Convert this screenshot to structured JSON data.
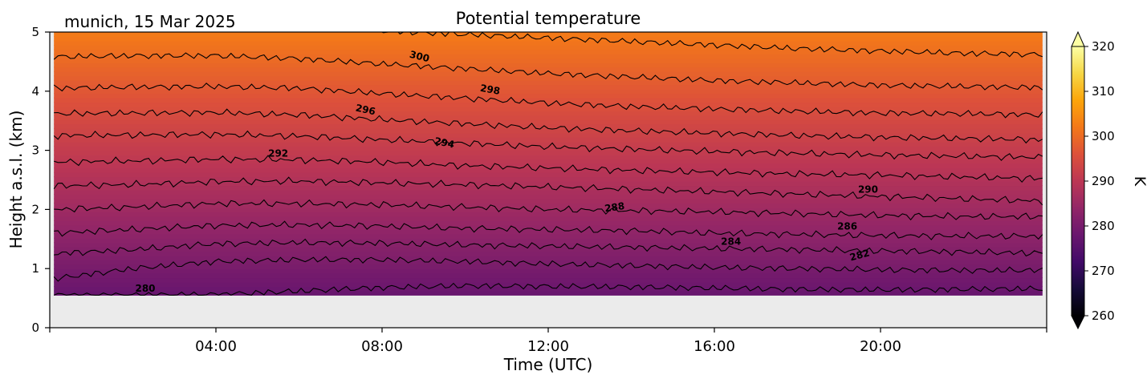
{
  "header": {
    "location_date": "munich, 15 Mar 2025",
    "title": "Potential temperature"
  },
  "chart_data": {
    "type": "heatmap",
    "title": "Potential temperature",
    "xlabel": "Time (UTC)",
    "ylabel": "Height a.s.l. (km)",
    "colorbar_label": "K",
    "x_range_hours": [
      0,
      24
    ],
    "x_ticks": [
      {
        "hour": 4,
        "label": "04:00"
      },
      {
        "hour": 8,
        "label": "08:00"
      },
      {
        "hour": 12,
        "label": "12:00"
      },
      {
        "hour": 16,
        "label": "16:00"
      },
      {
        "hour": 20,
        "label": "20:00"
      }
    ],
    "y_range_km": [
      0,
      5
    ],
    "y_ticks": [
      0,
      1,
      2,
      3,
      4,
      5
    ],
    "data_bottom_km": 0.55,
    "no_data_color": "#ebebeb",
    "colormap": "inferno",
    "color_range_K": [
      260,
      320
    ],
    "colorbar_ticks": [
      260,
      270,
      280,
      290,
      300,
      310,
      320
    ],
    "colorbar_extend": "both",
    "theta_surface_K": 277.5,
    "theta_top_K": 302.5,
    "contour_interval_K": 2,
    "contours": [
      {
        "level": 280,
        "z_km": [
          0.55,
          0.55,
          0.56,
          0.62,
          0.68,
          0.71,
          0.7,
          0.69,
          0.67,
          0.65,
          0.64,
          0.65,
          0.66
        ]
      },
      {
        "level": 282,
        "z_km": [
          0.82,
          1.0,
          1.12,
          1.15,
          1.15,
          1.12,
          1.08,
          1.05,
          1.02,
          1.0,
          0.98,
          0.97,
          0.97
        ]
      },
      {
        "level": 284,
        "z_km": [
          1.25,
          1.32,
          1.42,
          1.44,
          1.43,
          1.4,
          1.38,
          1.36,
          1.34,
          1.32,
          1.3,
          1.28,
          1.26
        ]
      },
      {
        "level": 286,
        "z_km": [
          1.6,
          1.66,
          1.73,
          1.74,
          1.72,
          1.68,
          1.66,
          1.64,
          1.6,
          1.58,
          1.56,
          1.55,
          1.55
        ]
      },
      {
        "level": 288,
        "z_km": [
          2.0,
          2.04,
          2.1,
          2.1,
          2.08,
          2.04,
          2.0,
          1.98,
          1.96,
          1.93,
          1.9,
          1.88,
          1.88
        ]
      },
      {
        "level": 290,
        "z_km": [
          2.4,
          2.42,
          2.47,
          2.48,
          2.45,
          2.42,
          2.38,
          2.34,
          2.3,
          2.26,
          2.22,
          2.18,
          2.14
        ]
      },
      {
        "level": 292,
        "z_km": [
          2.8,
          2.82,
          2.85,
          2.84,
          2.8,
          2.74,
          2.7,
          2.66,
          2.63,
          2.6,
          2.58,
          2.55,
          2.52
        ]
      },
      {
        "level": 294,
        "z_km": [
          3.25,
          3.26,
          3.27,
          3.24,
          3.18,
          3.12,
          3.06,
          3.02,
          2.98,
          2.95,
          2.92,
          2.9,
          2.88
        ]
      },
      {
        "level": 296,
        "z_km": [
          3.62,
          3.63,
          3.64,
          3.6,
          3.52,
          3.45,
          3.38,
          3.33,
          3.29,
          3.25,
          3.22,
          3.2,
          3.18
        ]
      },
      {
        "level": 298,
        "z_km": [
          4.05,
          4.07,
          4.08,
          4.05,
          3.96,
          3.88,
          3.8,
          3.74,
          3.7,
          3.66,
          3.63,
          3.62,
          3.6
        ]
      },
      {
        "level": 300,
        "z_km": [
          4.58,
          4.6,
          4.6,
          4.55,
          4.46,
          4.38,
          4.3,
          4.24,
          4.18,
          4.14,
          4.1,
          4.08,
          4.06
        ]
      },
      {
        "level": 302,
        "z_km": [
          5.1,
          5.1,
          5.1,
          5.08,
          5.02,
          4.96,
          4.9,
          4.84,
          4.78,
          4.72,
          4.68,
          4.64,
          4.62
        ]
      }
    ],
    "contour_labels": [
      {
        "text": "280",
        "hour": 2.3,
        "z_km": 0.66,
        "angle": 0
      },
      {
        "text": "282",
        "hour": 19.5,
        "z_km": 1.22,
        "angle": -15
      },
      {
        "text": "284",
        "hour": 16.4,
        "z_km": 1.45,
        "angle": 0
      },
      {
        "text": "286",
        "hour": 19.2,
        "z_km": 1.71,
        "angle": 0
      },
      {
        "text": "288",
        "hour": 13.6,
        "z_km": 2.03,
        "angle": -8
      },
      {
        "text": "290",
        "hour": 19.7,
        "z_km": 2.33,
        "angle": 0
      },
      {
        "text": "292",
        "hour": 5.5,
        "z_km": 2.94,
        "angle": 0
      },
      {
        "text": "294",
        "hour": 9.5,
        "z_km": 3.12,
        "angle": 12
      },
      {
        "text": "296",
        "hour": 7.6,
        "z_km": 3.68,
        "angle": 12
      },
      {
        "text": "298",
        "hour": 10.6,
        "z_km": 4.02,
        "angle": 10
      },
      {
        "text": "300",
        "hour": 8.9,
        "z_km": 4.58,
        "angle": 14
      }
    ]
  }
}
